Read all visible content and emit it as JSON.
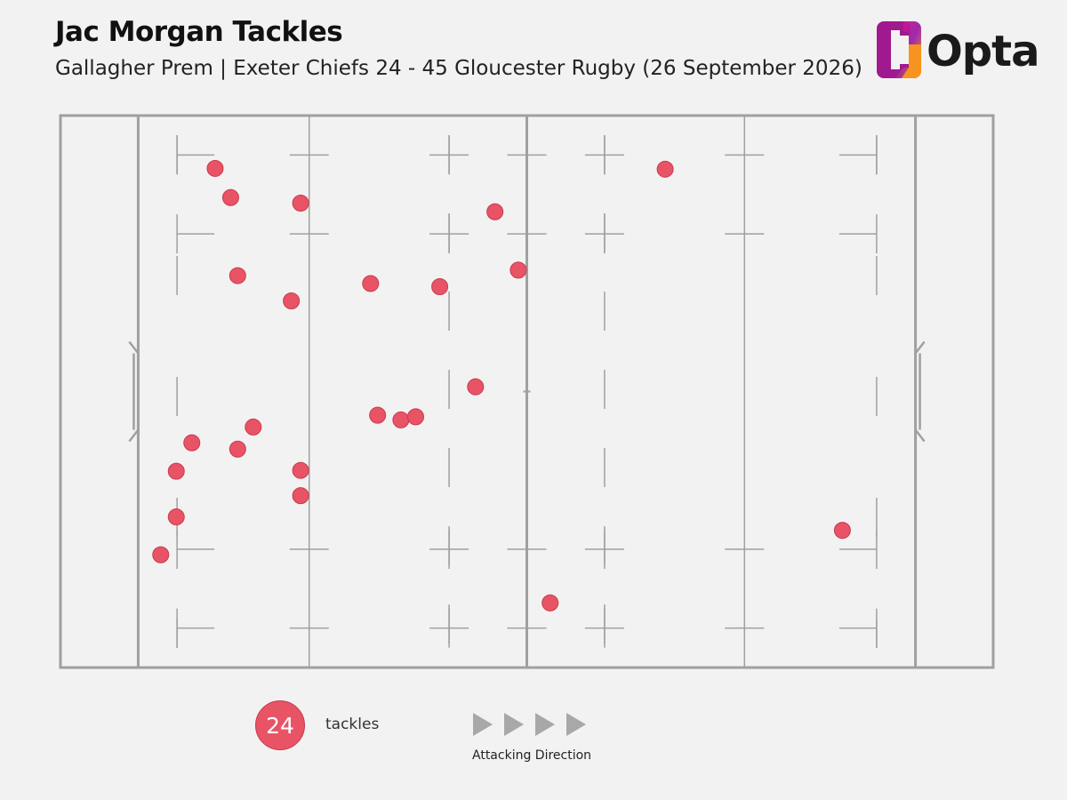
{
  "header": {
    "title": "Jac Morgan Tackles",
    "subtitle": "Gallagher Prem | Exeter Chiefs 24 - 45 Gloucester Rugby (26 September 2026)"
  },
  "logo": {
    "text": "Opta",
    "colors": [
      "#e8127a",
      "#9b1fa8",
      "#f7941d"
    ]
  },
  "colors": {
    "tackle": "#e85466",
    "tackle_stroke": "#c83a4c",
    "pitch_line": "#a0a0a0",
    "background": "#f2f2f2",
    "arrow": "#a8a8a8"
  },
  "legend": {
    "count": "24",
    "label": "tackles",
    "direction_label": "Attacking Direction"
  },
  "chart_data": {
    "type": "scatter",
    "x_unit": "m",
    "y_unit": "m",
    "xlim": [
      -10,
      110
    ],
    "ylim": [
      0,
      70
    ],
    "points": [
      {
        "x": 9.9,
        "y": 63.3
      },
      {
        "x": 11.9,
        "y": 59.6
      },
      {
        "x": 20.9,
        "y": 58.9
      },
      {
        "x": 45.9,
        "y": 57.8
      },
      {
        "x": 12.8,
        "y": 49.7
      },
      {
        "x": 19.7,
        "y": 46.5
      },
      {
        "x": 29.9,
        "y": 48.7
      },
      {
        "x": 38.8,
        "y": 48.3
      },
      {
        "x": 48.9,
        "y": 50.4
      },
      {
        "x": 43.4,
        "y": 35.6
      },
      {
        "x": 30.8,
        "y": 32.0
      },
      {
        "x": 33.8,
        "y": 31.4
      },
      {
        "x": 35.7,
        "y": 31.8
      },
      {
        "x": 14.8,
        "y": 30.5
      },
      {
        "x": 6.9,
        "y": 28.5
      },
      {
        "x": 12.8,
        "y": 27.7
      },
      {
        "x": 4.9,
        "y": 24.9
      },
      {
        "x": 20.9,
        "y": 25.0
      },
      {
        "x": 20.9,
        "y": 21.8
      },
      {
        "x": 4.9,
        "y": 19.1
      },
      {
        "x": 2.9,
        "y": 14.3
      },
      {
        "x": 53.0,
        "y": 8.2
      },
      {
        "x": 67.8,
        "y": 63.2
      },
      {
        "x": 90.6,
        "y": 17.4
      }
    ]
  }
}
